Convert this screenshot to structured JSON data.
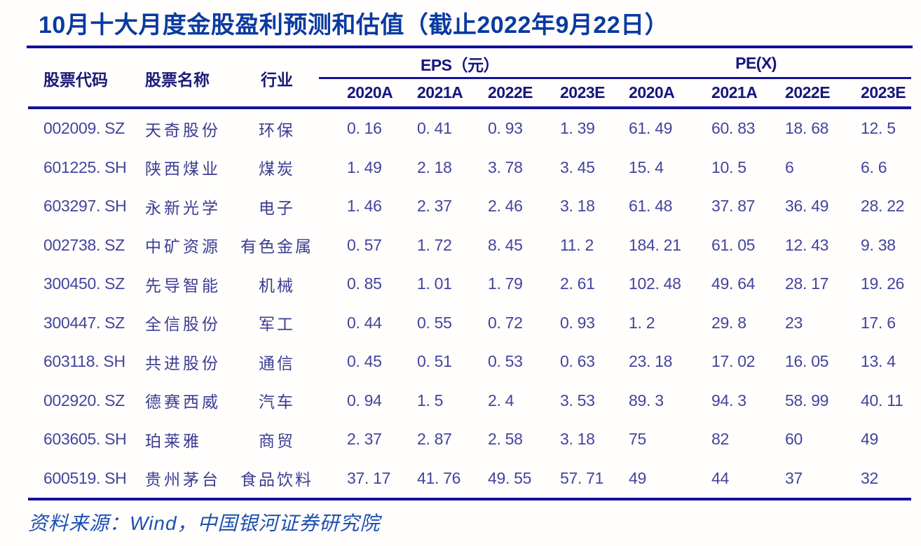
{
  "title": "10月十大月度金股盈利预测和估值（截止2022年9月22日）",
  "colors": {
    "title_blue": "#0a3aa2",
    "rule_navy": "#12129b",
    "header_navy": "#16167e",
    "data_purple_navy": "#44449c",
    "source_blue": "#1d4fb0",
    "background": "#fffefd"
  },
  "table": {
    "col_headers": {
      "code": "股票代码",
      "name": "股票名称",
      "industry": "行业"
    },
    "groups": [
      {
        "label": "EPS（元）",
        "years": [
          "2020A",
          "2021A",
          "2022E",
          "2023E"
        ]
      },
      {
        "label": "PE(X)",
        "years": [
          "2020A",
          "2021A",
          "2022E",
          "2023E"
        ]
      }
    ],
    "rows": [
      {
        "code": "002009. SZ",
        "name": "天奇股份",
        "industry": "环保",
        "eps": [
          "0. 16",
          "0. 41",
          "0. 93",
          "1. 39"
        ],
        "pe": [
          "61. 49",
          "60. 83",
          "18. 68",
          "12. 5"
        ]
      },
      {
        "code": "601225. SH",
        "name": "陕西煤业",
        "industry": "煤炭",
        "eps": [
          "1. 49",
          "2. 18",
          "3. 78",
          "3. 45"
        ],
        "pe": [
          "15. 4",
          "10. 5",
          "6",
          "6. 6"
        ]
      },
      {
        "code": "603297. SH",
        "name": "永新光学",
        "industry": "电子",
        "eps": [
          "1. 46",
          "2. 37",
          "2. 46",
          "3. 18"
        ],
        "pe": [
          "61. 48",
          "37. 87",
          "36. 49",
          "28. 22"
        ]
      },
      {
        "code": "002738. SZ",
        "name": "中矿资源",
        "industry": "有色金属",
        "eps": [
          "0. 57",
          "1. 72",
          "8. 45",
          "11. 2"
        ],
        "pe": [
          "184. 21",
          "61. 05",
          "12. 43",
          "9. 38"
        ]
      },
      {
        "code": "300450. SZ",
        "name": "先导智能",
        "industry": "机械",
        "eps": [
          "0. 85",
          "1. 01",
          "1. 79",
          "2. 61"
        ],
        "pe": [
          "102. 48",
          "49. 64",
          "28. 17",
          "19. 26"
        ]
      },
      {
        "code": "300447. SZ",
        "name": "全信股份",
        "industry": "军工",
        "eps": [
          "0. 44",
          "0. 55",
          "0. 72",
          "0. 93"
        ],
        "pe": [
          "1. 2",
          "29. 8",
          "23",
          "17. 6"
        ]
      },
      {
        "code": "603118. SH",
        "name": "共进股份",
        "industry": "通信",
        "eps": [
          "0. 45",
          "0. 51",
          "0. 53",
          "0. 63"
        ],
        "pe": [
          "23. 18",
          "17. 02",
          "16. 05",
          "13. 4"
        ]
      },
      {
        "code": "002920. SZ",
        "name": "德赛西威",
        "industry": "汽车",
        "eps": [
          "0. 94",
          "1. 5",
          "2. 4",
          "3. 53"
        ],
        "pe": [
          "89. 3",
          "94. 3",
          "58. 99",
          "40. 11"
        ]
      },
      {
        "code": "603605. SH",
        "name": "珀莱雅",
        "industry": "商贸",
        "eps": [
          "2. 37",
          "2. 87",
          "2. 58",
          "3. 18"
        ],
        "pe": [
          "75",
          "82",
          "60",
          "49"
        ]
      },
      {
        "code": "600519. SH",
        "name": "贵州茅台",
        "industry": "食品饮料",
        "eps": [
          "37. 17",
          "41. 76",
          "49. 55",
          "57. 71"
        ],
        "pe": [
          "49",
          "44",
          "37",
          "32"
        ]
      }
    ]
  },
  "source": "资料来源：Wind，中国银河证券研究院"
}
